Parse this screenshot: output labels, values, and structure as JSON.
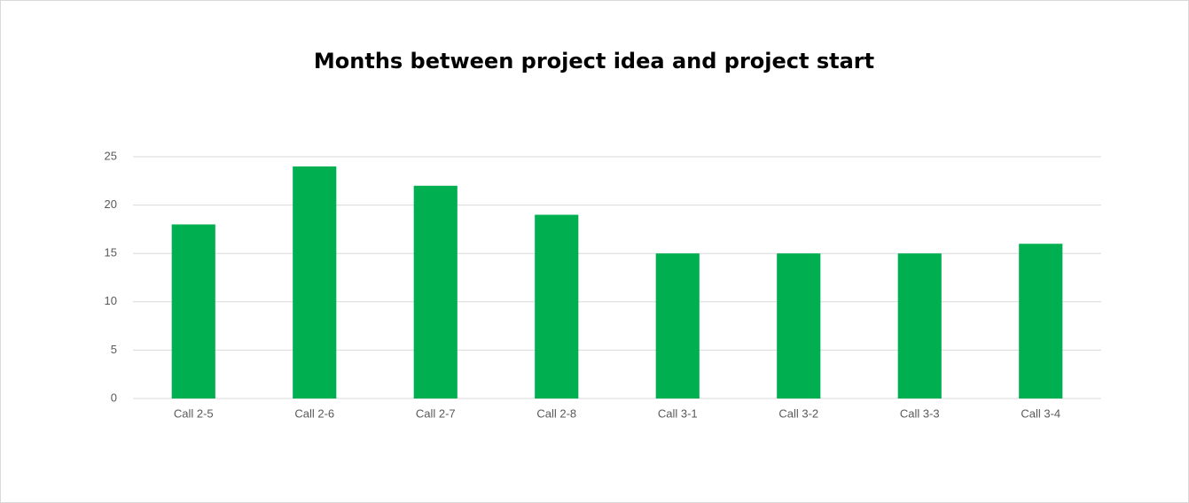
{
  "chart_data": {
    "type": "bar",
    "title": "Months between project idea and project start",
    "categories": [
      "Call 2-5",
      "Call 2-6",
      "Call 2-7",
      "Call 2-8",
      "Call 3-1",
      "Call 3-2",
      "Call 3-3",
      "Call 3-4"
    ],
    "values": [
      18,
      24,
      22,
      19,
      15,
      15,
      15,
      16
    ],
    "color": "#00b050",
    "ylim": [
      0,
      25
    ],
    "yticks": [
      0,
      5,
      10,
      15,
      20,
      25
    ],
    "grid": true
  }
}
